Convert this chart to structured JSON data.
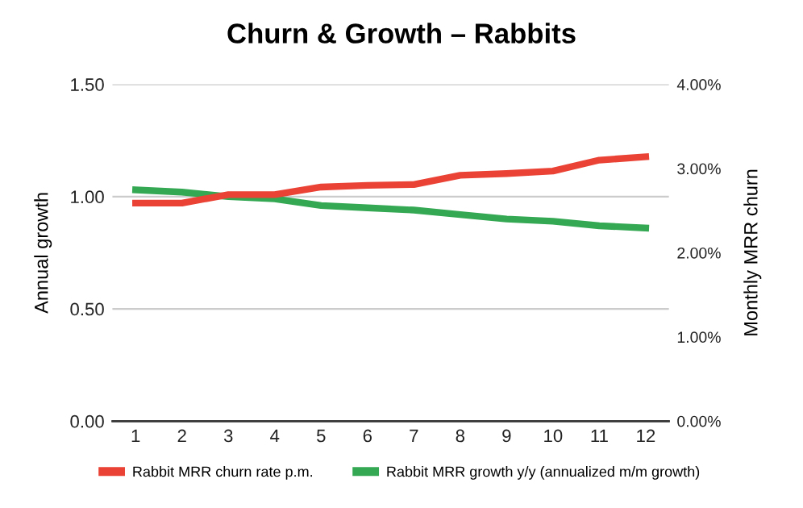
{
  "chart_data": {
    "type": "line",
    "title": "Churn & Growth – Rabbits",
    "ylabel": "Annual growth",
    "y2label": "Monthly MRR churn",
    "categories": [
      "1",
      "2",
      "3",
      "4",
      "5",
      "6",
      "7",
      "8",
      "9",
      "10",
      "11",
      "12"
    ],
    "series": [
      {
        "name": "Rabbit MRR churn rate p.m.",
        "color": "#ea4335",
        "axis": "y2",
        "values": [
          2.59,
          2.59,
          2.69,
          2.69,
          2.78,
          2.8,
          2.81,
          2.92,
          2.94,
          2.97,
          3.1,
          3.14
        ]
      },
      {
        "name": "Rabbit MRR growth y/y (annualized m/m growth)",
        "color": "#34a853",
        "values": [
          1.03,
          1.02,
          1.0,
          0.99,
          0.96,
          0.95,
          0.94,
          0.92,
          0.9,
          0.89,
          0.87,
          0.86
        ]
      }
    ],
    "ylim": [
      0,
      1.5
    ],
    "yticks": [
      {
        "value": 0,
        "label": "0.00"
      },
      {
        "value": 0.5,
        "label": "0.50"
      },
      {
        "value": 1,
        "label": "1.00"
      },
      {
        "value": 1.5,
        "label": "1.50"
      }
    ],
    "y2lim": [
      0,
      4
    ],
    "y2ticks": [
      {
        "value": 0,
        "label": "0.00%"
      },
      {
        "value": 1,
        "label": "1.00%"
      },
      {
        "value": 2,
        "label": "2.00%"
      },
      {
        "value": 3,
        "label": "3.00%"
      },
      {
        "value": 4,
        "label": "4.00%"
      }
    ],
    "grid": "y",
    "legend": "bottom",
    "marker": "none",
    "line_style": "solid"
  }
}
